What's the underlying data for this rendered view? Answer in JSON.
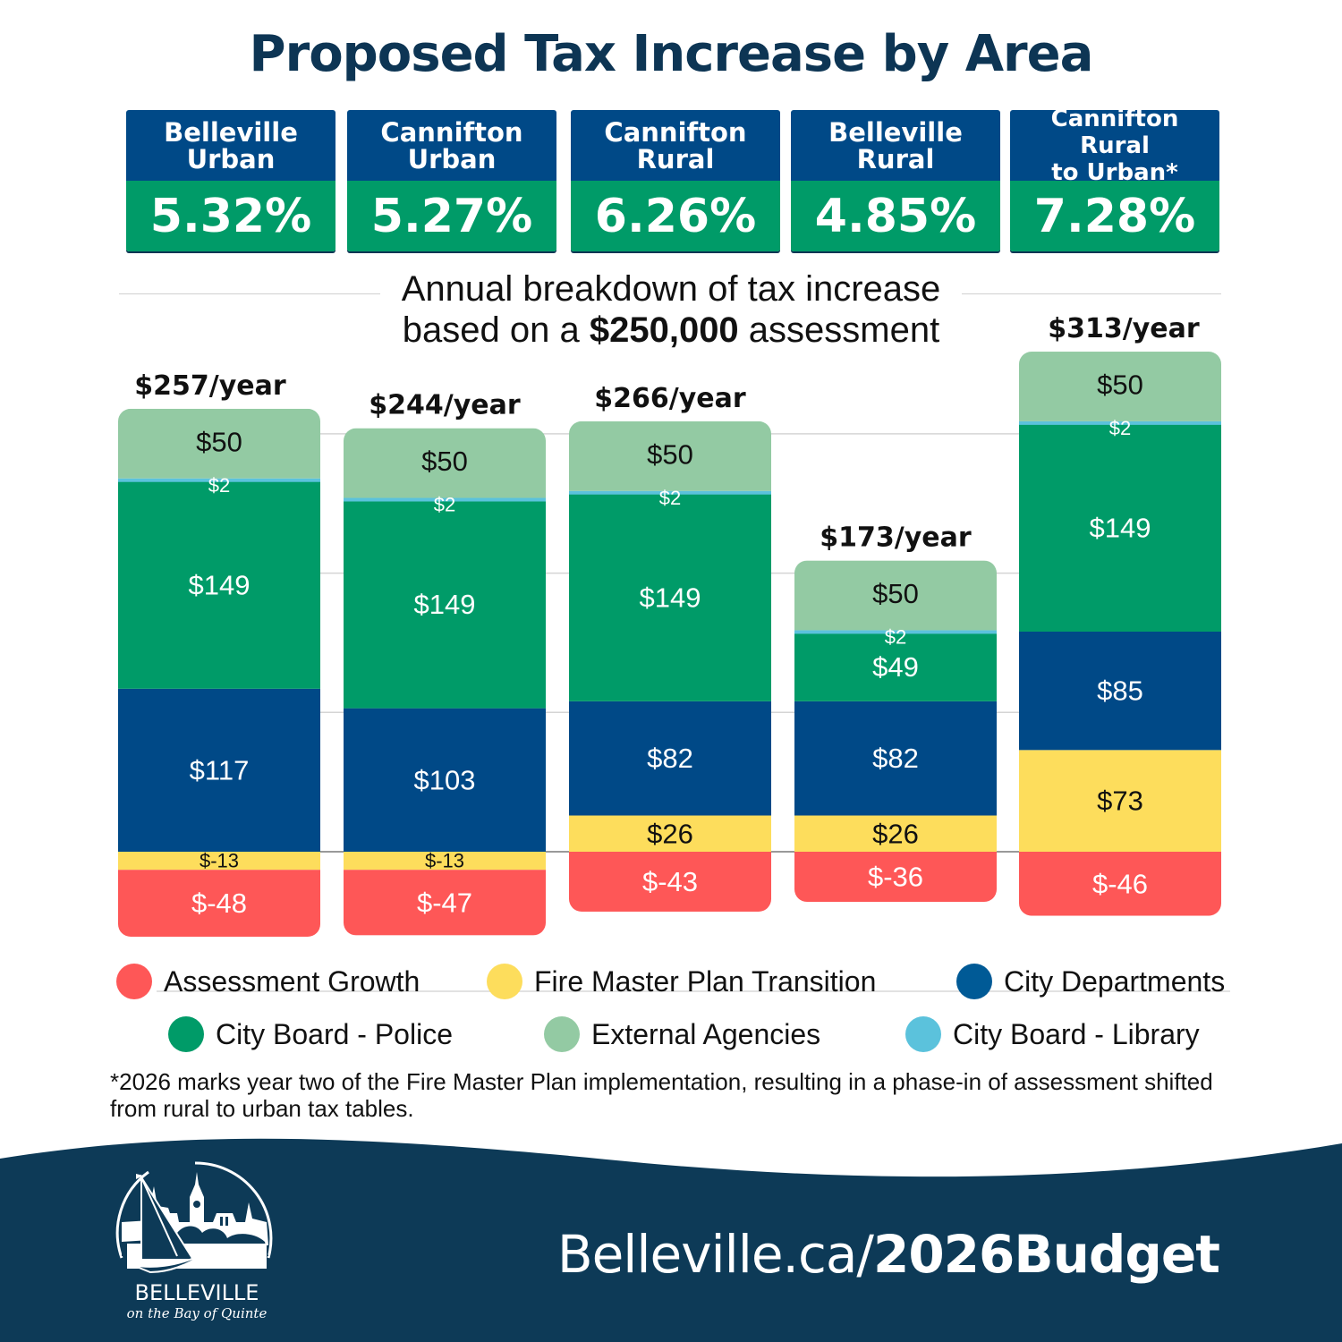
{
  "title": "Proposed Tax Increase by Area",
  "areas": [
    {
      "name": "Belleville\nUrban",
      "rate": "5.32%"
    },
    {
      "name": "Cannifton\nUrban",
      "rate": "5.27%"
    },
    {
      "name": "Cannifton\nRural",
      "rate": "6.26%"
    },
    {
      "name": "Belleville\nRural",
      "rate": "4.85%"
    },
    {
      "name": "Cannifton Rural\nto Urban*",
      "rate": "7.28%"
    }
  ],
  "subtitle": {
    "line1": "Annual breakdown of tax increase",
    "line2_pre": "based on a ",
    "line2_bold": "$250,000",
    "line2_post": " assessment"
  },
  "colors": {
    "title": "#0d3554",
    "card_head": "#004987",
    "card_value": "#009b68",
    "footer": "#0d3a57"
  },
  "chart_data": {
    "type": "bar",
    "stacked": true,
    "title": "Annual breakdown of tax increase based on a $250,000 assessment",
    "xlabel": "",
    "ylabel": "",
    "ylim": [
      -50,
      320
    ],
    "grid": true,
    "legend_position": "bottom",
    "categories": [
      "Belleville Urban",
      "Cannifton Urban",
      "Cannifton Rural",
      "Belleville Rural",
      "Cannifton Rural to Urban*"
    ],
    "totals": [
      257,
      244,
      266,
      173,
      313
    ],
    "total_labels": [
      "$257/year",
      "$244/year",
      "$266/year",
      "$173/year",
      "$313/year"
    ],
    "series": [
      {
        "name": "Assessment Growth",
        "color": "#fe5757",
        "label_color": "#ffffff",
        "values": [
          -48,
          -47,
          -43,
          -36,
          -46
        ]
      },
      {
        "name": "Fire Master Plan Transition",
        "color": "#fddd5c",
        "label_color": "#111111",
        "values": [
          -13,
          -13,
          26,
          26,
          73
        ]
      },
      {
        "name": "City Departments",
        "color": "#004987",
        "label_color": "#ffffff",
        "values": [
          117,
          103,
          82,
          82,
          85
        ]
      },
      {
        "name": "City Board - Police",
        "color": "#009b68",
        "label_color": "#ffffff",
        "values": [
          149,
          149,
          149,
          49,
          149
        ]
      },
      {
        "name": "City Board - Library",
        "color": "#5bc2dc",
        "label_color": "#ffffff",
        "values": [
          2,
          2,
          2,
          2,
          2
        ]
      },
      {
        "name": "External Agencies",
        "color": "#93caa3",
        "label_color": "#111111",
        "values": [
          50,
          50,
          50,
          50,
          50
        ]
      }
    ]
  },
  "legend": [
    {
      "label": "Assessment Growth",
      "color": "#fe5757"
    },
    {
      "label": "Fire Master Plan Transition",
      "color": "#fddd5c"
    },
    {
      "label": "City Departments",
      "color": "#005a96"
    },
    {
      "label": "City Board - Police",
      "color": "#009b68"
    },
    {
      "label": "External Agencies",
      "color": "#93caa3"
    },
    {
      "label": "City Board - Library",
      "color": "#5bc2dc"
    }
  ],
  "footnote": "*2026 marks year two of the Fire Master Plan implementation, resulting in a phase-in of assessment shifted from rural to urban tax tables.",
  "footer": {
    "url_plain": "Belleville.ca/",
    "url_bold": "2026Budget",
    "logo_name": "BELLEVILLE",
    "logo_tagline": "on the Bay of Quinte"
  }
}
